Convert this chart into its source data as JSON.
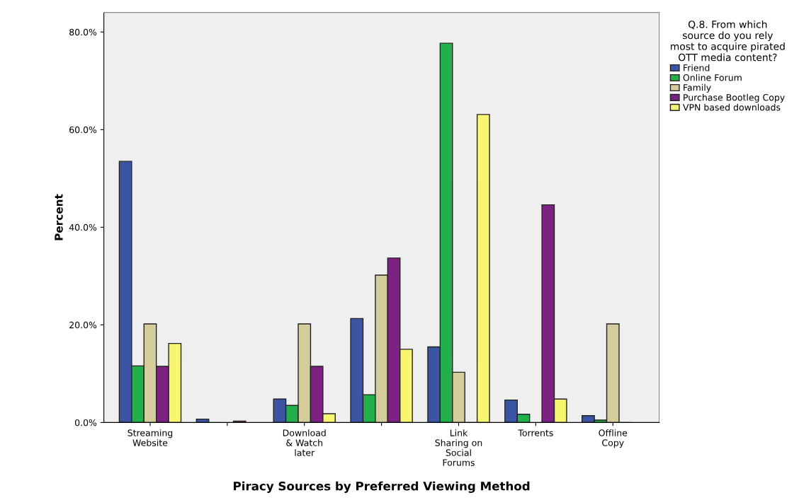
{
  "chart_data": {
    "type": "bar",
    "xlabel": "Piracy Sources by Preferred Viewing Method",
    "ylabel": "Percent",
    "legend_title": "Q.8. From which\nsource do you rely\nmost to acquire pirated\nOTT media content?",
    "categories": [
      "Streaming\nWebsite",
      null,
      "Download\n& Watch\nlater",
      null,
      "Link\nSharing on\nSocial\nForums",
      "Torrents",
      "Offline\nCopy"
    ],
    "series": [
      {
        "name": "Friend",
        "color": "#3b54a4",
        "values": [
          53.5,
          0.7,
          4.8,
          21.3,
          15.5,
          4.6,
          1.4
        ]
      },
      {
        "name": "Online Forum",
        "color": "#22b04b",
        "values": [
          11.6,
          0,
          3.5,
          5.7,
          77.7,
          1.7,
          0.5
        ]
      },
      {
        "name": "Family",
        "color": "#d4cc9a",
        "values": [
          20.2,
          0,
          20.2,
          30.2,
          10.3,
          0,
          20.2
        ]
      },
      {
        "name": "Purchase Bootleg Copy",
        "color": "#7b2283",
        "values": [
          11.5,
          0.3,
          11.5,
          33.7,
          0,
          44.6,
          0
        ]
      },
      {
        "name": "VPN based downloads",
        "color": "#f8f570",
        "values": [
          16.2,
          0,
          1.8,
          15.0,
          63.1,
          4.8,
          0
        ]
      }
    ],
    "ylim": [
      0,
      84
    ],
    "yticks": [
      {
        "value": 0,
        "label": "0.0%"
      },
      {
        "value": 20,
        "label": "20.0%"
      },
      {
        "value": 40,
        "label": "40.0%"
      },
      {
        "value": 60,
        "label": "60.0%"
      },
      {
        "value": 80,
        "label": "80.0%"
      }
    ],
    "legend": "right"
  }
}
